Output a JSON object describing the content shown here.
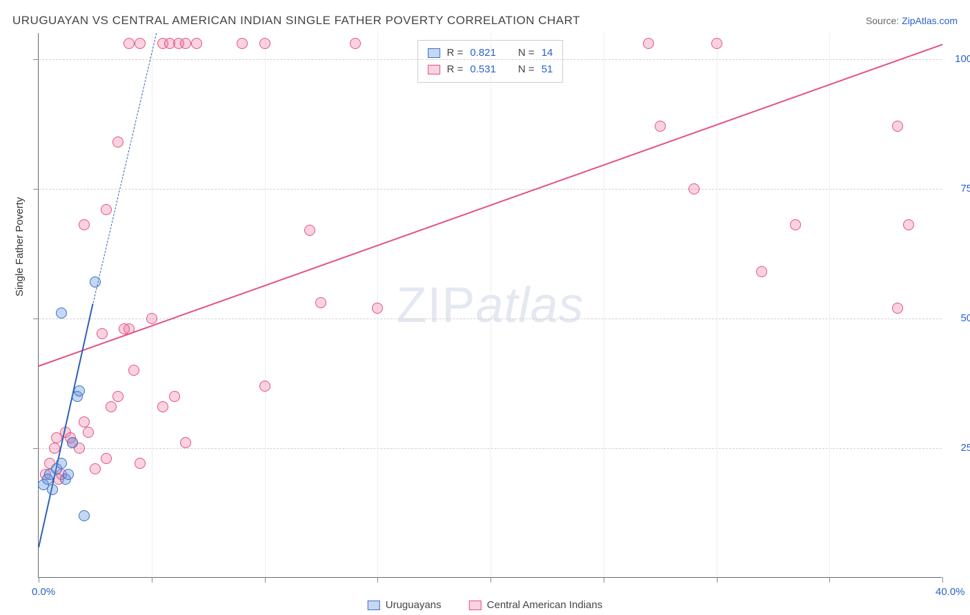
{
  "title": "URUGUAYAN VS CENTRAL AMERICAN INDIAN SINGLE FATHER POVERTY CORRELATION CHART",
  "source_label": "Source: ",
  "source_link": "ZipAtlas.com",
  "y_axis_title": "Single Father Poverty",
  "watermark_zip": "ZIP",
  "watermark_atlas": "atlas",
  "x_range": [
    0,
    40
  ],
  "y_range": [
    0,
    105
  ],
  "x_ticks": [
    0,
    5,
    10,
    15,
    20,
    25,
    30,
    35,
    40
  ],
  "x_tick_labels": {
    "0": "0.0%",
    "40": "40.0%"
  },
  "y_ticks": [
    25,
    50,
    75,
    100
  ],
  "y_tick_labels": {
    "25": "25.0%",
    "50": "50.0%",
    "75": "75.0%",
    "100": "100.0%"
  },
  "series": [
    {
      "id": "uruguayans",
      "name": "Uruguayans",
      "fill": "rgba(90,140,220,0.35)",
      "stroke": "#3a6fc5",
      "marker_radius": 8,
      "R": "0.821",
      "N": "14",
      "trend": {
        "x1": 0,
        "y1": 6,
        "x2": 2.4,
        "y2": 53,
        "color": "#2a5fb5",
        "width": 2.5,
        "dash": "solid",
        "extend_x2": 5.2,
        "extend_y2": 105,
        "extend_dash": "dashed"
      },
      "points": [
        [
          0.2,
          18
        ],
        [
          0.4,
          19
        ],
        [
          0.5,
          20
        ],
        [
          0.6,
          17
        ],
        [
          0.8,
          21
        ],
        [
          1.0,
          22
        ],
        [
          1.2,
          19
        ],
        [
          1.5,
          26
        ],
        [
          1.7,
          35
        ],
        [
          1.8,
          36
        ],
        [
          2.0,
          12
        ],
        [
          1.0,
          51
        ],
        [
          2.5,
          57
        ],
        [
          1.3,
          20
        ]
      ]
    },
    {
      "id": "cai",
      "name": "Central American Indians",
      "fill": "rgba(235,110,150,0.30)",
      "stroke": "#e5507e",
      "marker_radius": 8,
      "R": "0.531",
      "N": "51",
      "trend": {
        "x1": 0,
        "y1": 41,
        "x2": 40,
        "y2": 103,
        "color": "#e5507e",
        "width": 2.5,
        "dash": "solid"
      },
      "points": [
        [
          0.3,
          20
        ],
        [
          0.5,
          22
        ],
        [
          0.7,
          25
        ],
        [
          0.8,
          27
        ],
        [
          1.0,
          20
        ],
        [
          1.2,
          28
        ],
        [
          1.5,
          26
        ],
        [
          1.8,
          25
        ],
        [
          2.0,
          30
        ],
        [
          2.2,
          28
        ],
        [
          2.5,
          21
        ],
        [
          3.0,
          23
        ],
        [
          3.2,
          33
        ],
        [
          3.5,
          35
        ],
        [
          4.0,
          48
        ],
        [
          4.2,
          40
        ],
        [
          4.5,
          22
        ],
        [
          5.0,
          50
        ],
        [
          5.5,
          33
        ],
        [
          6.0,
          35
        ],
        [
          6.5,
          26
        ],
        [
          10.0,
          37
        ],
        [
          12.0,
          67
        ],
        [
          12.5,
          53
        ],
        [
          15.0,
          52
        ],
        [
          2.0,
          68
        ],
        [
          3.0,
          71
        ],
        [
          3.5,
          84
        ],
        [
          4.0,
          103
        ],
        [
          4.5,
          103
        ],
        [
          5.5,
          103
        ],
        [
          5.8,
          103
        ],
        [
          6.2,
          103
        ],
        [
          6.5,
          103
        ],
        [
          7.0,
          103
        ],
        [
          9.0,
          103
        ],
        [
          10.0,
          103
        ],
        [
          14.0,
          103
        ],
        [
          27.0,
          103
        ],
        [
          30.0,
          103
        ],
        [
          27.5,
          87
        ],
        [
          29.0,
          75
        ],
        [
          32.0,
          59
        ],
        [
          33.5,
          68
        ],
        [
          38.0,
          87
        ],
        [
          38.5,
          68
        ],
        [
          38.0,
          52
        ],
        [
          0.9,
          19
        ],
        [
          1.4,
          27
        ],
        [
          2.8,
          47
        ],
        [
          3.8,
          48
        ]
      ]
    }
  ],
  "stats_labels": {
    "R": "R =",
    "N": "N ="
  },
  "colors": {
    "axis_label": "#2962c9",
    "grid": "#d0d0d0",
    "text": "#444"
  }
}
